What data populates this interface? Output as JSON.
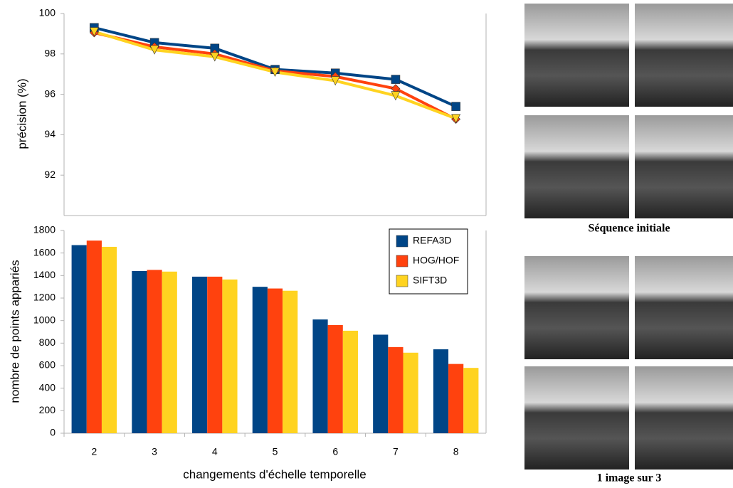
{
  "chart_data": [
    {
      "type": "line",
      "ylabel": "précision (%)",
      "ylim": [
        90,
        100
      ],
      "yticks": [
        92,
        94,
        96,
        98,
        100
      ],
      "series": [
        {
          "color": "#004586",
          "marker": "square",
          "values": [
            99.3,
            98.56,
            98.28,
            97.23,
            97.05,
            96.74,
            95.4
          ]
        },
        {
          "color": "#ff420e",
          "marker": "diamond",
          "values": [
            99.05,
            98.35,
            98.0,
            97.16,
            96.88,
            96.28,
            94.77
          ]
        },
        {
          "color": "#ffd320",
          "marker": "triangle-down",
          "values": [
            99.1,
            98.2,
            97.86,
            97.1,
            96.67,
            95.93,
            94.8
          ]
        }
      ]
    },
    {
      "type": "bar",
      "ylabel": "nombre de points appariés",
      "xlabel": "changements d'échelle temporelle",
      "categories": [
        "2",
        "3",
        "4",
        "5",
        "6",
        "7",
        "8"
      ],
      "ylim": [
        0,
        1800
      ],
      "yticks": [
        0,
        200,
        400,
        600,
        800,
        1000,
        1200,
        1400,
        1600,
        1800
      ],
      "legend": "upper right",
      "series": [
        {
          "name": "REFA3D",
          "color": "#004586",
          "values": [
            1670,
            1440,
            1390,
            1300,
            1010,
            875,
            745
          ]
        },
        {
          "name": "HOG/HOF",
          "color": "#ff420e",
          "values": [
            1710,
            1450,
            1390,
            1285,
            960,
            765,
            615
          ]
        },
        {
          "name": "SIFT3D",
          "color": "#ffd320",
          "values": [
            1655,
            1435,
            1365,
            1265,
            910,
            715,
            580
          ]
        }
      ]
    }
  ],
  "panels": [
    {
      "caption": "Séquence initiale"
    },
    {
      "caption": "1 image sur 3"
    }
  ]
}
